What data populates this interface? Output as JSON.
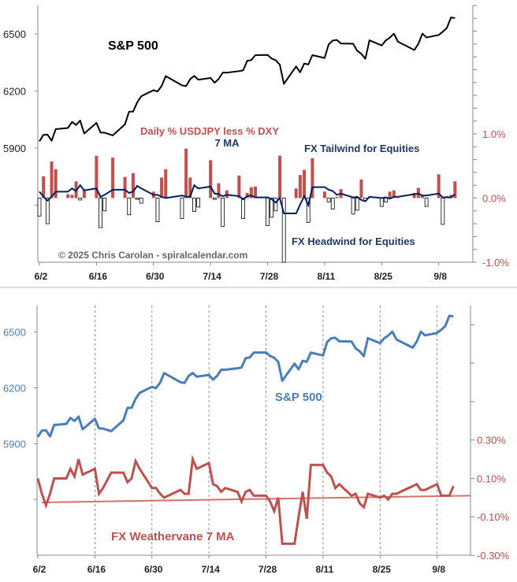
{
  "colors": {
    "spx_top": "#000000",
    "bar_pos": "#c0504d",
    "bar_neg": "#ffffff",
    "ma_top": "#002060",
    "spx_bottom": "#4a7ebb",
    "ma_bottom": "#c0504d",
    "trend": "#d9706d",
    "axis_left_top": "#222222",
    "axis_right": "#c0504d",
    "axis_left_bottom": "#4a7ebb",
    "label_blue": "#1f3864"
  },
  "chart_data": [
    {
      "type": "line+bar",
      "panel": "top",
      "title": "",
      "annotations": {
        "spx_label": "S&P 500",
        "bars_label": "Daily % USDJPY less % DXY",
        "ma_label": "7 MA",
        "tailwind": "FX Tailwind for Equities",
        "headwind": "FX Headwind for Equities",
        "copyright": "© 2025 Chris Carolan - spiralcalendar.com"
      },
      "x_ticks": [
        "6/2",
        "6/16",
        "6/30",
        "7/14",
        "7/28",
        "8/11",
        "8/25",
        "9/8"
      ],
      "left_ticks": [
        "6500",
        "6200",
        "5900"
      ],
      "right_ticks": [
        "1.0%",
        "0.0%",
        "-1.0%"
      ],
      "left_ylim": [
        5300,
        6650
      ],
      "right_ylim": [
        -1.0,
        3.0
      ],
      "grid": false
    },
    {
      "type": "line",
      "panel": "bottom",
      "annotations": {
        "spx_label": "S&P 500",
        "ma_label": "FX Weathervane 7 MA"
      },
      "x_ticks": [
        "6/2",
        "6/16",
        "6/30",
        "7/14",
        "7/28",
        "8/11",
        "8/25",
        "9/8"
      ],
      "left_ticks": [
        "6500",
        "6200",
        "5900"
      ],
      "right_ticks": [
        "0.30%",
        "0.10%",
        "-0.10%",
        "-0.30%"
      ],
      "left_ylim": [
        5300,
        6642
      ],
      "right_ylim": [
        -0.3,
        1.0
      ],
      "trend": [
        -0.025,
        0.01
      ],
      "grid": "vertical dashed at x ticks"
    }
  ],
  "series": {
    "dates": [
      "6/2",
      "6/3",
      "6/4",
      "6/5",
      "6/6",
      "6/9",
      "6/10",
      "6/11",
      "6/12",
      "6/13",
      "6/16",
      "6/17",
      "6/18",
      "6/20",
      "6/23",
      "6/24",
      "6/25",
      "6/26",
      "6/27",
      "6/30",
      "7/1",
      "7/2",
      "7/3",
      "7/7",
      "7/8",
      "7/9",
      "7/10",
      "7/11",
      "7/14",
      "7/15",
      "7/16",
      "7/17",
      "7/18",
      "7/21",
      "7/22",
      "7/23",
      "7/24",
      "7/25",
      "7/28",
      "7/29",
      "7/30",
      "7/31",
      "8/1",
      "8/4",
      "8/5",
      "8/6",
      "8/7",
      "8/8",
      "8/11",
      "8/12",
      "8/13",
      "8/14",
      "8/15",
      "8/18",
      "8/19",
      "8/20",
      "8/21",
      "8/22",
      "8/25",
      "8/26",
      "8/27",
      "8/28",
      "8/29",
      "9/2",
      "9/3",
      "9/4",
      "9/5",
      "9/8",
      "9/9",
      "9/10",
      "9/11",
      "9/12"
    ],
    "spx": [
      5936,
      5970,
      5971,
      5939,
      6000,
      6006,
      6038,
      6022,
      6045,
      5977,
      6033,
      5982,
      5981,
      5967,
      6025,
      6092,
      6092,
      6141,
      6173,
      6205,
      6198,
      6227,
      6279,
      6230,
      6226,
      6263,
      6280,
      6260,
      6269,
      6244,
      6264,
      6297,
      6297,
      6305,
      6309,
      6359,
      6363,
      6389,
      6390,
      6371,
      6362,
      6339,
      6238,
      6330,
      6299,
      6345,
      6340,
      6389,
      6374,
      6446,
      6466,
      6469,
      6450,
      6449,
      6412,
      6396,
      6370,
      6467,
      6440,
      6466,
      6481,
      6502,
      6460,
      6416,
      6448,
      6502,
      6482,
      6495,
      6512,
      6532,
      6587,
      6584
    ],
    "daily_diff_pct": [
      -0.28,
      0.34,
      -0.4,
      0.57,
      0.45,
      0.06,
      0.05,
      0.26,
      -0.03,
      0.13,
      0.66,
      -0.46,
      -0.2,
      0.63,
      0.33,
      -0.26,
      0.39,
      -0.02,
      -0.08,
      0.1,
      -0.37,
      0.32,
      0.45,
      -0.32,
      0.77,
      0.32,
      -0.21,
      -0.14,
      0.59,
      -0.02,
      0.23,
      -0.44,
      0.12,
      0.35,
      -0.32,
      0.08,
      0.17,
      0.18,
      -0.43,
      -0.3,
      -0.2,
      0.66,
      -1.0,
      0.15,
      0.36,
      0.44,
      -0.38,
      0.62,
      0.1,
      -0.06,
      -0.17,
      0.02,
      0.14,
      -0.25,
      -0.19,
      0.29,
      -0.04,
      0.0,
      -0.13,
      -0.06,
      0.1,
      0.12,
      0.0,
      0.08,
      0.16,
      0.05,
      -0.13,
      0.37,
      -0.41,
      0.03,
      0.05,
      0.26
    ],
    "ma7_pct": [
      0.1,
      0.02,
      -0.04,
      0.02,
      0.1,
      0.1,
      0.15,
      0.11,
      0.2,
      0.12,
      0.15,
      0.02,
      0.05,
      0.13,
      0.13,
      0.08,
      0.1,
      0.19,
      0.15,
      0.05,
      0.05,
      0.02,
      0.0,
      0.04,
      0.02,
      0.02,
      0.2,
      0.15,
      0.18,
      0.07,
      0.06,
      0.03,
      0.05,
      0.03,
      -0.02,
      0.03,
      0.04,
      0.01,
      0.01,
      -0.02,
      -0.07,
      0.0,
      -0.24,
      -0.24,
      -0.1,
      0.03,
      -0.11,
      0.17,
      0.17,
      0.13,
      0.11,
      0.05,
      0.07,
      0.01,
      0.02,
      -0.03,
      -0.05,
      0.02,
      0.0,
      0.01,
      -0.01,
      0.02,
      0.02,
      0.06,
      0.07,
      0.04,
      0.04,
      0.07,
      0.01,
      0.01,
      0.01,
      0.06
    ]
  }
}
